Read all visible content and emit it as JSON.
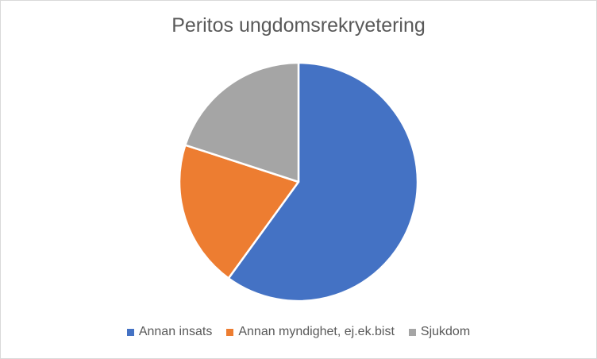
{
  "chart_data": {
    "type": "pie",
    "title": "Peritos ungdomsrekryetering",
    "categories": [
      "Annan insats",
      "Annan myndighet, ej.ek.bist",
      "Sjukdom"
    ],
    "values": [
      60,
      20,
      20
    ],
    "colors": [
      "#4472c4",
      "#ed7d31",
      "#a5a5a5"
    ],
    "legend_position": "bottom"
  }
}
